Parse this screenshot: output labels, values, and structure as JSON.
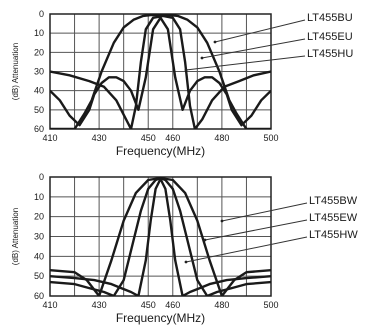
{
  "chart_data": [
    {
      "type": "line",
      "xlabel": "Frequency(MHz)",
      "ylabel": "(dB) Attenuation",
      "xlim": [
        410,
        500
      ],
      "ylim": [
        0,
        60
      ],
      "y_inverted": true,
      "grid": true,
      "xticks": [
        "410",
        "430",
        "450",
        "460",
        "480",
        "500"
      ],
      "yticks": [
        "0",
        "10",
        "20",
        "30",
        "40",
        "50",
        "60"
      ],
      "legend_placement": "right",
      "series": [
        {
          "name": "LT455BU",
          "x": [
            410,
            420,
            424,
            427,
            431,
            436,
            440,
            444,
            448,
            451,
            455,
            459,
            462,
            466,
            470,
            474,
            479,
            483,
            486,
            490,
            495,
            500
          ],
          "y": [
            60,
            60,
            52,
            45,
            30,
            15,
            7,
            3,
            1,
            0.5,
            0.5,
            0.5,
            1,
            3,
            7,
            15,
            30,
            45,
            52,
            60,
            60,
            60
          ]
        },
        {
          "name": "LT455EU",
          "x": [
            410,
            418,
            426,
            432,
            437,
            441,
            443,
            445,
            447,
            449,
            452,
            456,
            460,
            463,
            465,
            467,
            469,
            472,
            476,
            481,
            487,
            493,
            500
          ],
          "y": [
            30,
            32,
            35,
            38,
            45,
            55,
            60,
            48,
            25,
            8,
            2,
            1,
            2,
            8,
            25,
            48,
            60,
            55,
            45,
            38,
            35,
            32,
            30
          ]
        },
        {
          "name": "LT455HU",
          "x": [
            410,
            414,
            418,
            422,
            426,
            428,
            431,
            434,
            437,
            440,
            443,
            446,
            449,
            452,
            455,
            458,
            461,
            464,
            467,
            470,
            473,
            476,
            479,
            482,
            484,
            488,
            492,
            496,
            500
          ],
          "y": [
            40,
            45,
            53,
            58,
            50,
            42,
            36,
            33,
            33,
            35,
            40,
            50,
            33,
            8,
            2,
            8,
            33,
            50,
            40,
            35,
            33,
            33,
            36,
            42,
            50,
            58,
            53,
            45,
            40
          ]
        }
      ]
    },
    {
      "type": "line",
      "xlabel": "Frequency(MHz)",
      "ylabel": "(dB) Attenuation",
      "xlim": [
        410,
        500
      ],
      "ylim": [
        0,
        60
      ],
      "y_inverted": true,
      "grid": true,
      "xticks": [
        "410",
        "430",
        "450",
        "460",
        "480",
        "500"
      ],
      "yticks": [
        "0",
        "10",
        "20",
        "30",
        "40",
        "50",
        "60"
      ],
      "legend_placement": "right",
      "series": [
        {
          "name": "LT455BW",
          "x": [
            410,
            420,
            425,
            430,
            435,
            440,
            445,
            450,
            455,
            460,
            465,
            470,
            475,
            480,
            485,
            490,
            500
          ],
          "y": [
            47,
            48,
            52,
            60,
            42,
            22,
            8,
            1.5,
            0.5,
            1.5,
            8,
            22,
            42,
            60,
            52,
            48,
            47
          ]
        },
        {
          "name": "LT455EW",
          "x": [
            410,
            420,
            426,
            432,
            436,
            440,
            444,
            447,
            450,
            453,
            455,
            457,
            460,
            463,
            466,
            470,
            474,
            478,
            484,
            490,
            500
          ],
          "y": [
            53,
            54,
            56,
            58,
            60,
            52,
            32,
            17,
            6,
            1.5,
            0.5,
            1.5,
            6,
            17,
            32,
            52,
            60,
            58,
            56,
            54,
            53
          ]
        },
        {
          "name": "LT455HW",
          "x": [
            410,
            420,
            428,
            435,
            439,
            443,
            446,
            449,
            451,
            453,
            455,
            457,
            459,
            461,
            464,
            467,
            471,
            475,
            482,
            490,
            500
          ],
          "y": [
            50,
            51,
            52,
            54,
            56,
            58,
            60,
            42,
            22,
            6,
            1,
            6,
            22,
            42,
            60,
            58,
            56,
            54,
            52,
            51,
            50
          ]
        }
      ]
    }
  ]
}
